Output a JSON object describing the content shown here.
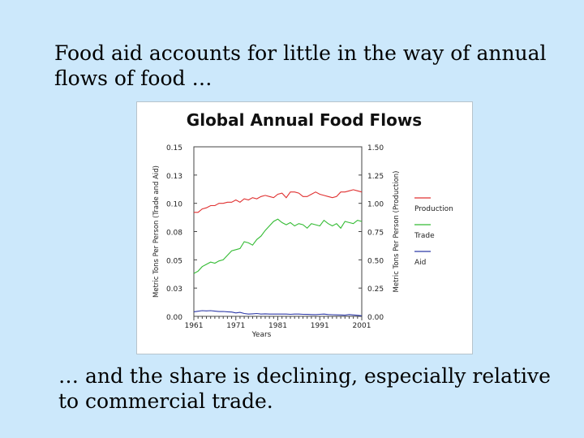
{
  "slide": {
    "heading_line1": "Food aid accounts for little in the way of annual",
    "heading_line2": "flows of food …",
    "footer_line1": "… and the share is declining, especially relative",
    "footer_line2": "to commercial trade."
  },
  "chart_data": {
    "type": "line",
    "title": "Global Annual Food Flows",
    "xlabel": "Years",
    "ylabel_left": "Metric Tons Per Person (Trade and Aid)",
    "ylabel_right": "Metric Tons Per Person (Production)",
    "xlim": [
      1961,
      2001
    ],
    "ylim_left": [
      0,
      0.15
    ],
    "ylim_right": [
      0,
      1.5
    ],
    "x_ticks": [
      "1961",
      "1971",
      "1981",
      "1991",
      "2001"
    ],
    "left_ticks": [
      "0.00",
      "0.03",
      "0.05",
      "0.08",
      "0.10",
      "0.13",
      "0.15"
    ],
    "right_ticks": [
      "0.00",
      "0.25",
      "0.50",
      "0.75",
      "1.00",
      "1.25",
      "1.50"
    ],
    "grid": false,
    "legend_position": "right",
    "x": [
      1961,
      1962,
      1963,
      1964,
      1965,
      1966,
      1967,
      1968,
      1969,
      1970,
      1971,
      1972,
      1973,
      1974,
      1975,
      1976,
      1977,
      1978,
      1979,
      1980,
      1981,
      1982,
      1983,
      1984,
      1985,
      1986,
      1987,
      1988,
      1989,
      1990,
      1991,
      1992,
      1993,
      1994,
      1995,
      1996,
      1997,
      1998,
      1999,
      2000,
      2001
    ],
    "series": [
      {
        "name": "Production",
        "color": "#e03030",
        "axis": "right",
        "values": [
          0.92,
          0.92,
          0.95,
          0.96,
          0.98,
          0.98,
          1.0,
          1.0,
          1.01,
          1.01,
          1.03,
          1.01,
          1.04,
          1.03,
          1.05,
          1.04,
          1.06,
          1.07,
          1.06,
          1.05,
          1.08,
          1.09,
          1.05,
          1.1,
          1.1,
          1.09,
          1.06,
          1.06,
          1.08,
          1.1,
          1.08,
          1.07,
          1.06,
          1.05,
          1.06,
          1.1,
          1.1,
          1.11,
          1.12,
          1.11,
          1.1
        ]
      },
      {
        "name": "Trade",
        "color": "#33bb33",
        "axis": "left",
        "values": [
          0.038,
          0.04,
          0.044,
          0.046,
          0.048,
          0.047,
          0.049,
          0.05,
          0.054,
          0.058,
          0.059,
          0.06,
          0.066,
          0.065,
          0.063,
          0.068,
          0.071,
          0.076,
          0.08,
          0.084,
          0.086,
          0.083,
          0.081,
          0.083,
          0.08,
          0.082,
          0.081,
          0.078,
          0.082,
          0.081,
          0.08,
          0.085,
          0.082,
          0.08,
          0.082,
          0.078,
          0.084,
          0.083,
          0.082,
          0.085,
          0.084
        ]
      },
      {
        "name": "Aid",
        "color": "#2e3aa8",
        "axis": "left",
        "values": [
          0.004,
          0.0045,
          0.005,
          0.0048,
          0.005,
          0.0046,
          0.0042,
          0.0043,
          0.004,
          0.0038,
          0.003,
          0.0035,
          0.0025,
          0.002,
          0.0022,
          0.0025,
          0.002,
          0.0022,
          0.002,
          0.002,
          0.002,
          0.002,
          0.002,
          0.0018,
          0.002,
          0.002,
          0.0018,
          0.0017,
          0.0016,
          0.0015,
          0.0018,
          0.002,
          0.0016,
          0.0014,
          0.0013,
          0.0012,
          0.001,
          0.0016,
          0.0012,
          0.0009,
          0.0005
        ]
      }
    ]
  }
}
